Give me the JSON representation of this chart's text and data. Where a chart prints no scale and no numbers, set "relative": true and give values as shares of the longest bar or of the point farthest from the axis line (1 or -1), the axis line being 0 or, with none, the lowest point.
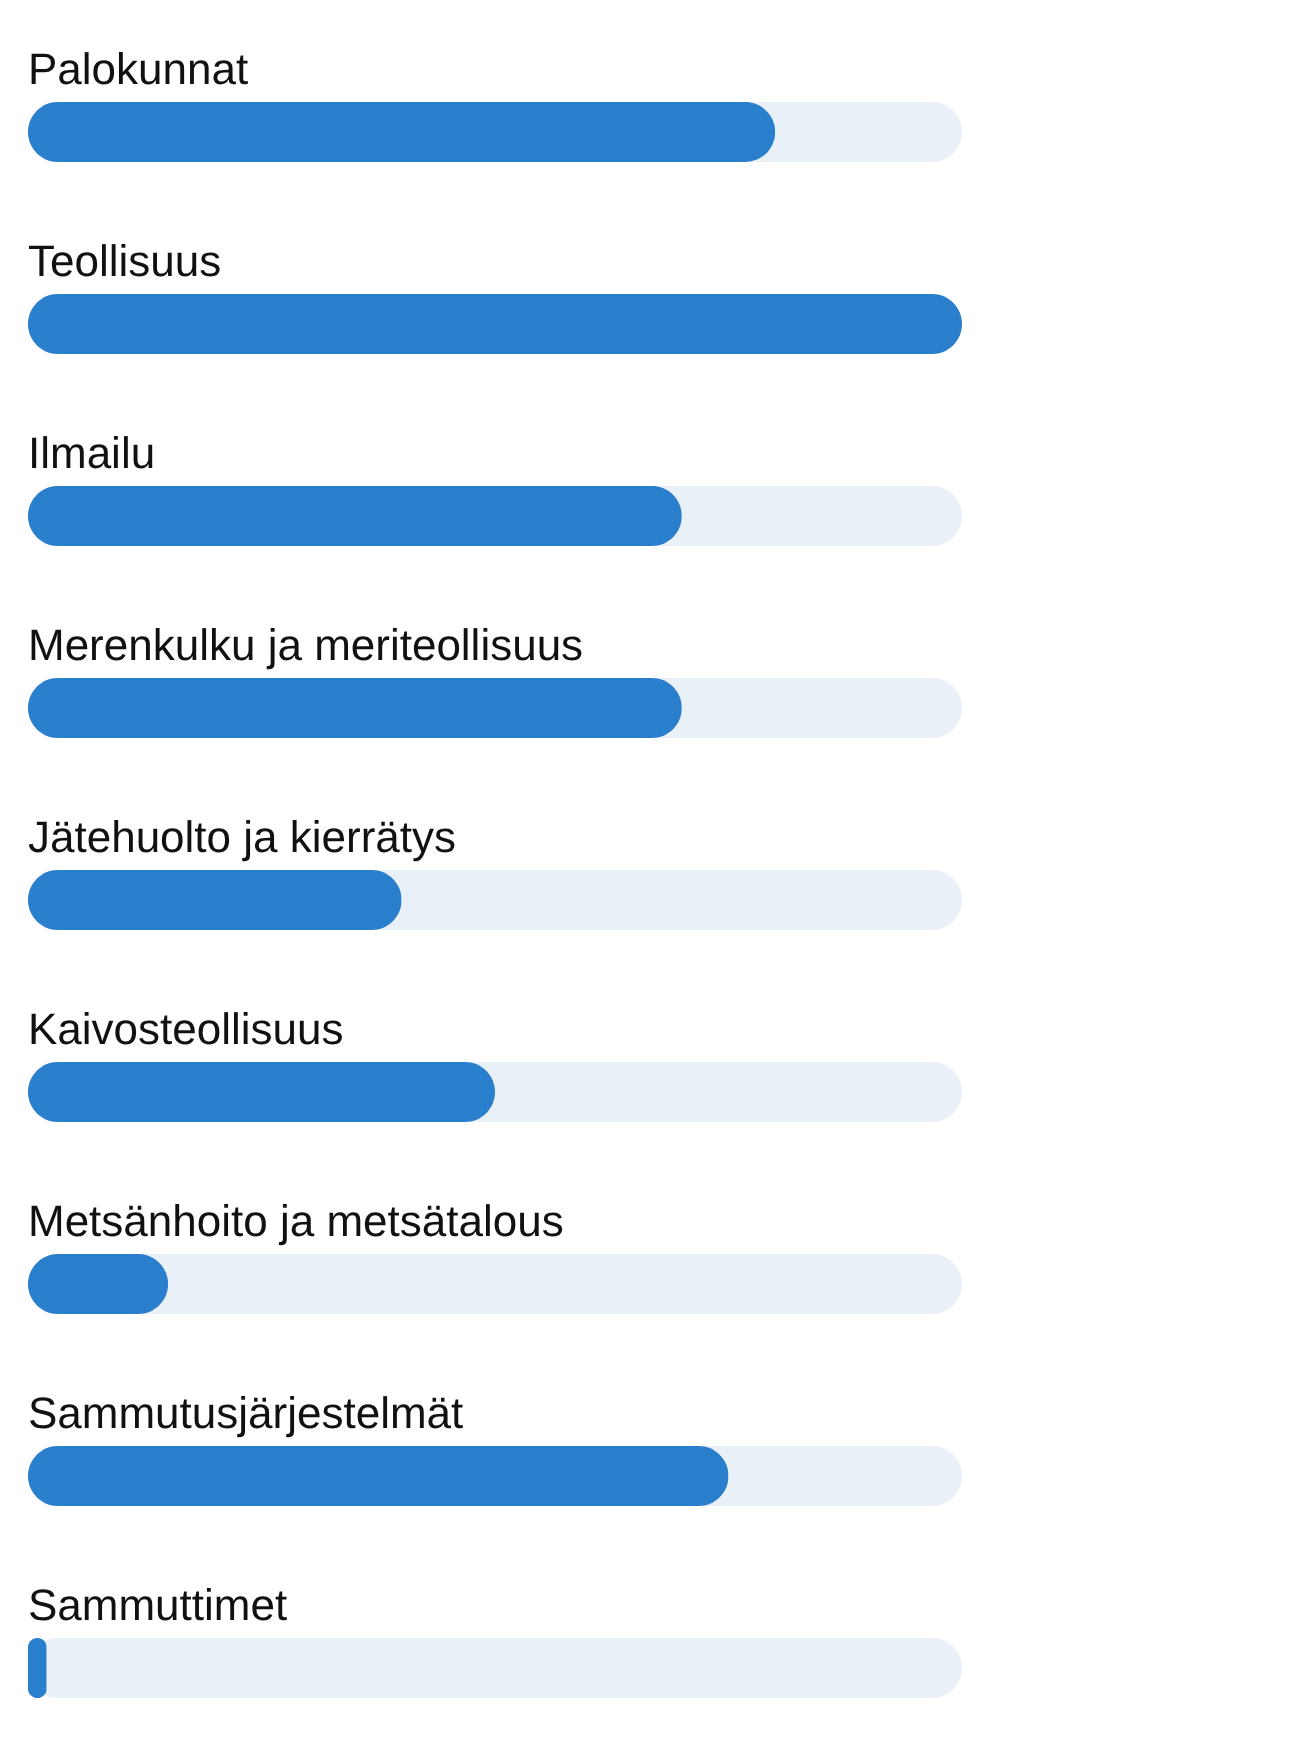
{
  "chart_data": {
    "type": "bar",
    "orientation": "horizontal",
    "relative": true,
    "color": "#2a7fcc",
    "categories": [
      "Palokunnat",
      "Teollisuus",
      "Ilmailu",
      "Merenkulku ja meriteollisuus",
      "Jätehuolto ja kierrätys",
      "Kaivosteollisuus",
      "Metsänhoito ja metsätalous",
      "Sammutusjärjestelmät",
      "Sammuttimet"
    ],
    "values": [
      0.8,
      1,
      0.7,
      0.7,
      0.4,
      0.5,
      0.15,
      0.75,
      0.02
    ]
  }
}
